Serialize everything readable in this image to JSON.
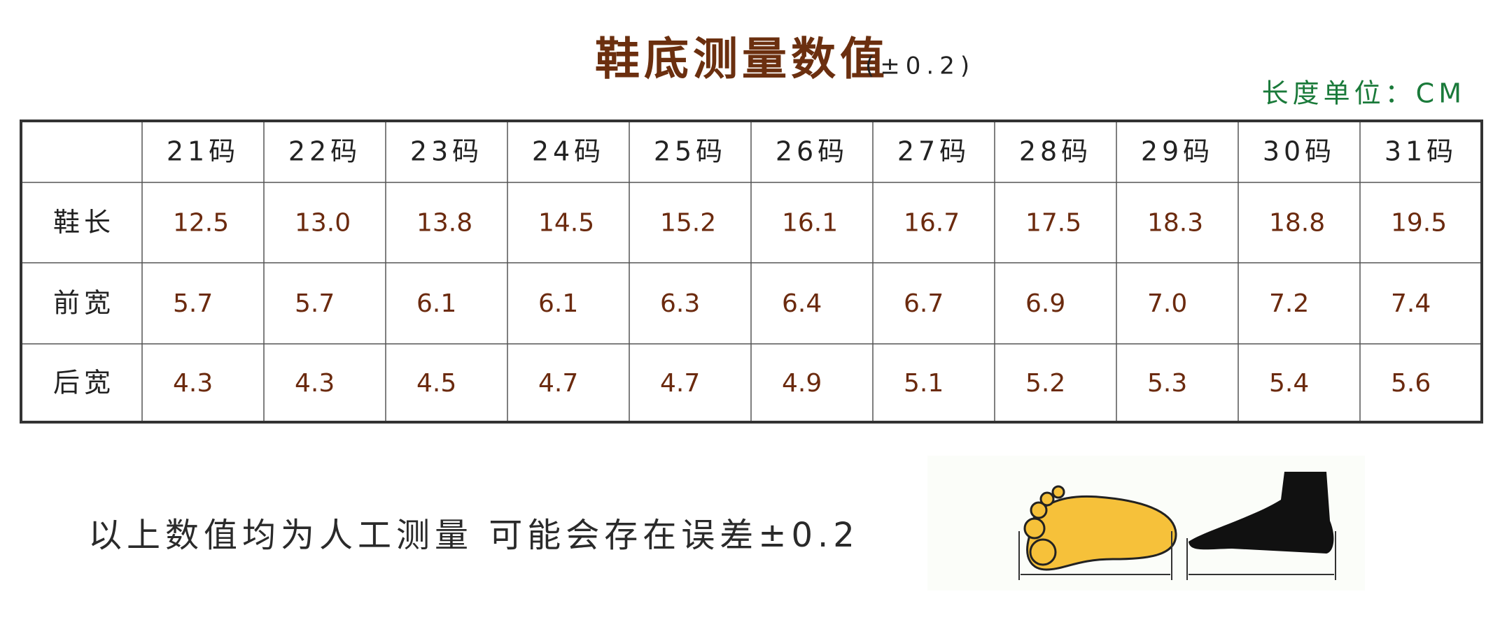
{
  "header": {
    "title": "鞋底测量数值",
    "tolerance": "(±0.2)",
    "unit": "长度单位：CM"
  },
  "table": {
    "columns": [
      "21码",
      "22码",
      "23码",
      "24码",
      "25码",
      "26码",
      "27码",
      "28码",
      "29码",
      "30码",
      "31码"
    ],
    "rows": [
      [
        "鞋长",
        "12.5",
        "13.0",
        "13.8",
        "14.5",
        "15.2",
        "16.1",
        "16.7",
        "17.5",
        "18.3",
        "18.8",
        "19.5"
      ],
      [
        "前宽",
        "5.7",
        "5.7",
        "6.1",
        "6.1",
        "6.3",
        "6.4",
        "6.7",
        "6.9",
        "7.0",
        "7.2",
        "7.4"
      ],
      [
        "后宽",
        "4.3",
        "4.3",
        "4.5",
        "4.7",
        "4.7",
        "4.9",
        "5.1",
        "5.2",
        "5.3",
        "5.4",
        "5.6"
      ]
    ]
  },
  "footnote": "以上数值均为人工测量 可能会存在误差±0.2"
}
